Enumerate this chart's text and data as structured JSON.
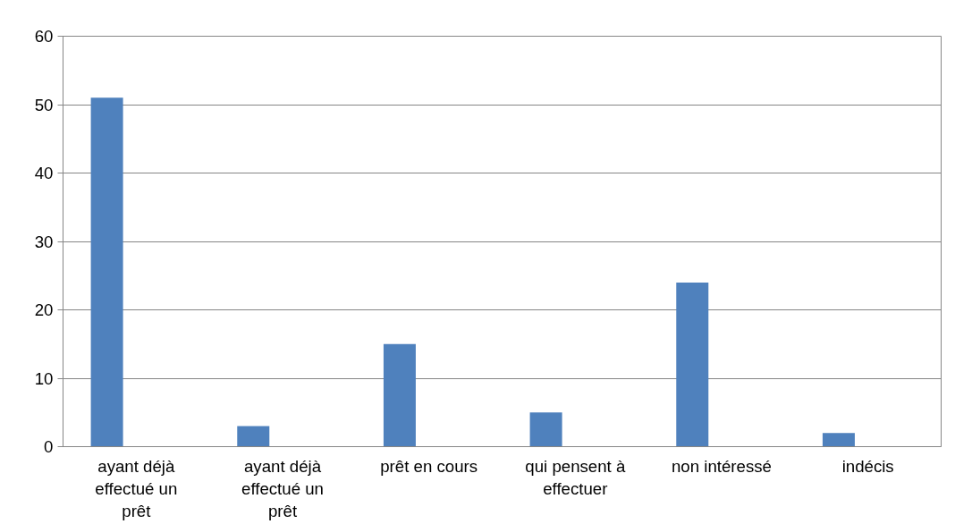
{
  "chart_data": {
    "type": "bar",
    "categories": [
      "ayant déjà effectué un prêt",
      "ayant déjà effectué un prêt",
      "prêt en cours",
      "qui pensent à effectuer",
      "non intéressé",
      "indécis"
    ],
    "values": [
      51,
      3,
      15,
      5,
      24,
      2
    ],
    "color": "#4f81bd",
    "ylim": [
      0,
      60
    ],
    "yticks": [
      0,
      10,
      20,
      30,
      40,
      50,
      60
    ],
    "grid": "y"
  }
}
